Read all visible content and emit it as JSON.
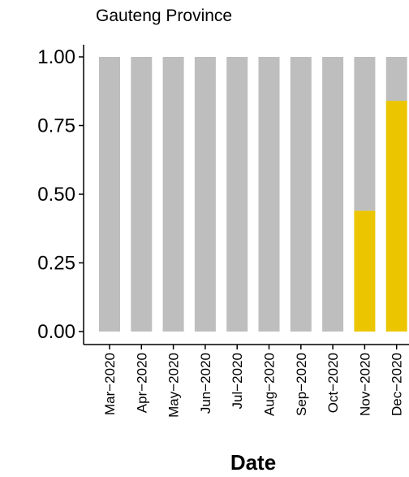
{
  "chart_data": {
    "type": "bar",
    "stacked": true,
    "title": "Gauteng Province",
    "xlabel": "Date",
    "ylabel": "",
    "ylim": [
      0,
      1
    ],
    "yticks": [
      "0.00",
      "0.25",
      "0.50",
      "0.75",
      "1.00"
    ],
    "categories": [
      "Mar−2020",
      "Apr−2020",
      "May−2020",
      "Jun−2020",
      "Jul−2020",
      "Aug−2020",
      "Sep−2020",
      "Oct−2020",
      "Nov−2020",
      "Dec−2020"
    ],
    "series": [
      {
        "values": [
          0,
          0,
          0,
          0,
          0,
          0,
          0,
          0,
          0.44,
          0.84
        ],
        "color": "#EBC600"
      },
      {
        "values": [
          1,
          1,
          1,
          1,
          1,
          1,
          1,
          1,
          0.56,
          0.16
        ],
        "color": "#BEBEBE"
      }
    ],
    "grid": false,
    "legend": "none"
  }
}
